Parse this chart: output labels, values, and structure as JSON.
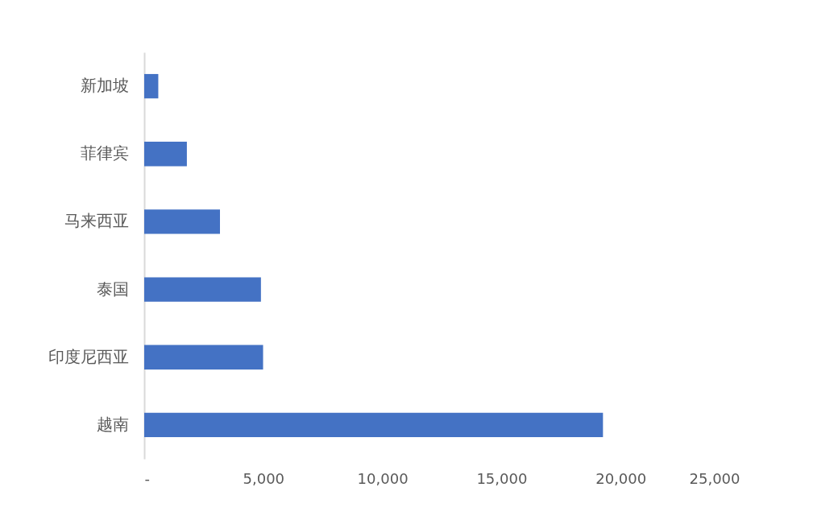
{
  "chart_data": {
    "type": "bar",
    "orientation": "horizontal",
    "categories": [
      "新加坡",
      "菲律宾",
      "马来西亚",
      "泰国",
      "印度尼西亚",
      "越南"
    ],
    "values": [
      590,
      1790,
      3180,
      4900,
      4990,
      19260
    ],
    "color": "#4472c4",
    "xlim": [
      0,
      25000
    ],
    "xticks": [
      {
        "value": 0,
        "label": "-"
      },
      {
        "value": 5000,
        "label": "5,000"
      },
      {
        "value": 10000,
        "label": "10,000"
      },
      {
        "value": 15000,
        "label": "15,000"
      },
      {
        "value": 20000,
        "label": "20,000"
      },
      {
        "value": 25000,
        "label": "25,000"
      }
    ]
  }
}
